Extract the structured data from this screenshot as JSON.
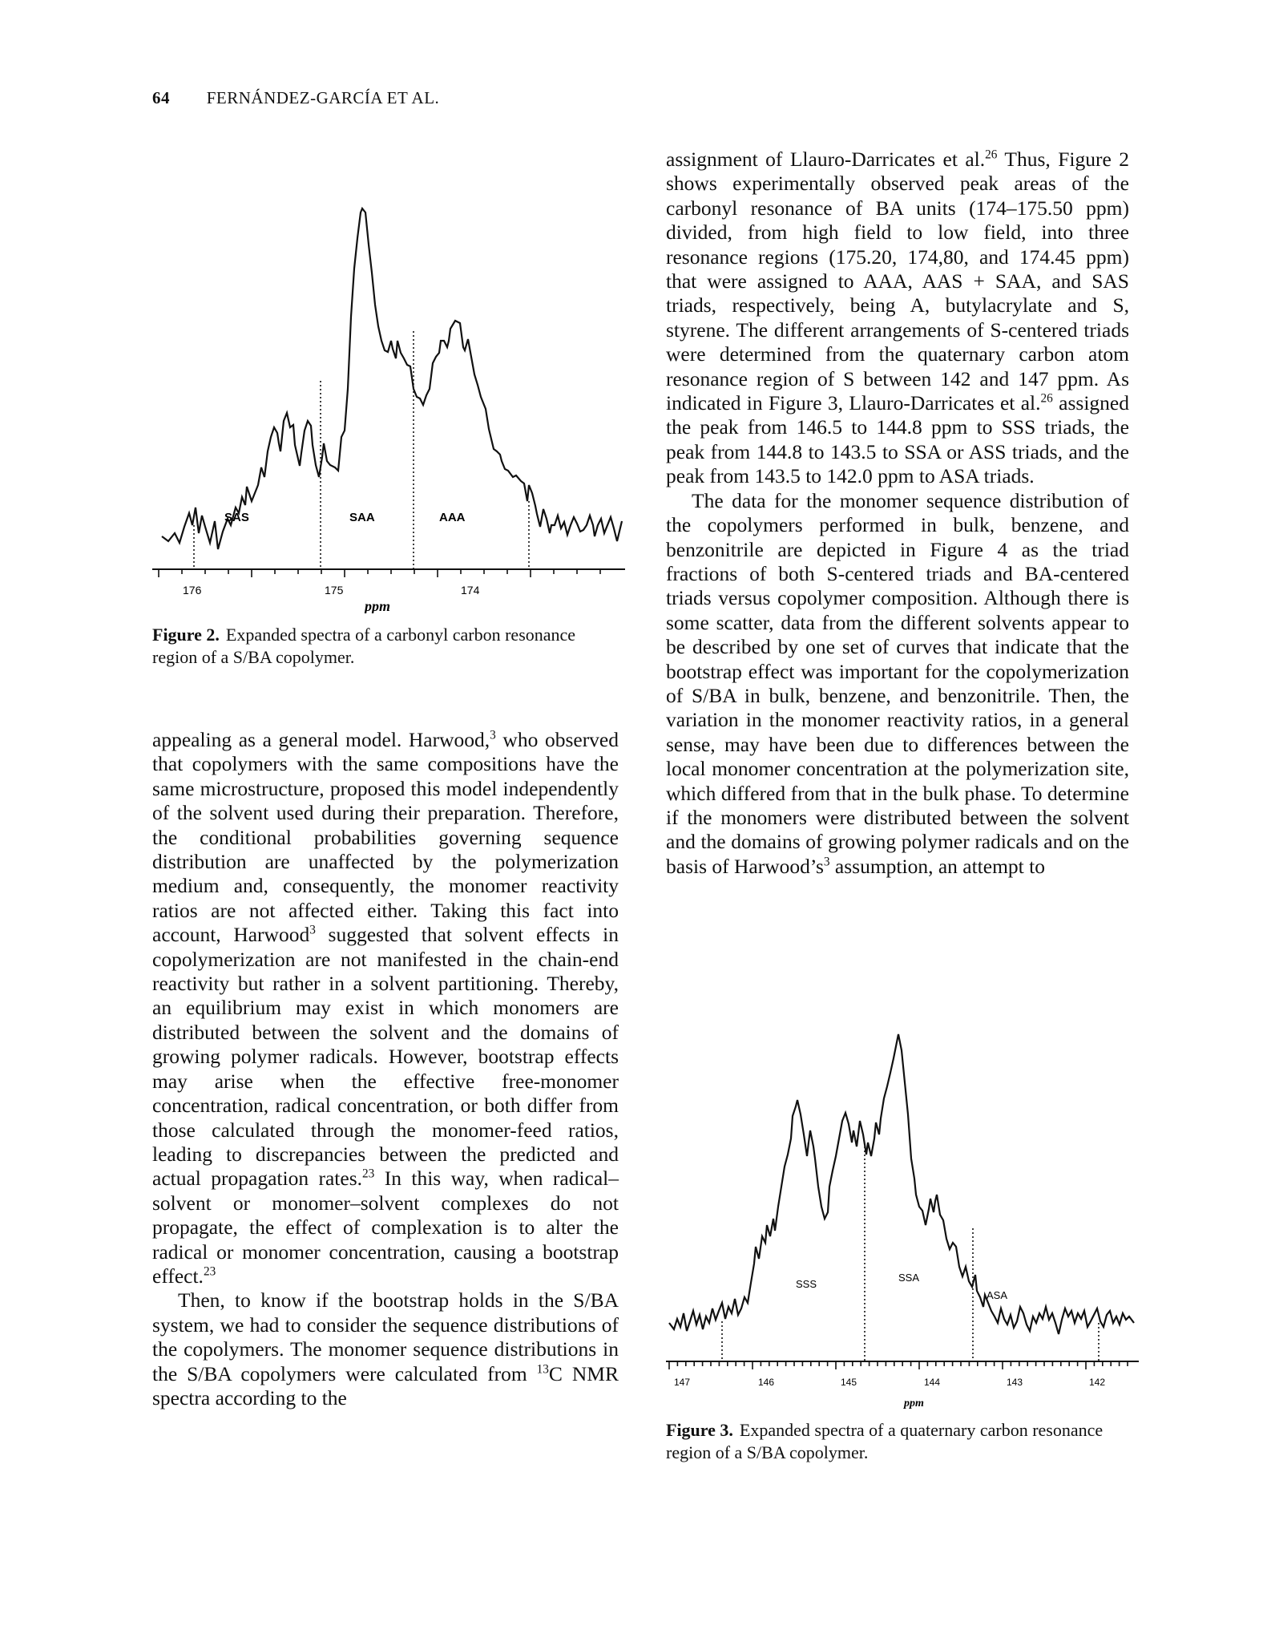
{
  "running_head": {
    "page_number": "64",
    "authors": "FERNÁNDEZ-GARCÍA ET AL."
  },
  "figure2": {
    "caption_label": "Figure 2.",
    "caption_text": "Expanded spectra of a carbonyl carbon resonance region of a S/BA copolymer.",
    "region_labels": [
      "SAS",
      "SAA",
      "AAA"
    ],
    "tick_labels": [
      "176",
      "175",
      "174"
    ],
    "axis_label": "ppm",
    "chart_data": {
      "type": "line",
      "xlabel": "ppm",
      "xlim": [
        176.4,
        173.2
      ],
      "x_ticks": [
        176,
        175,
        174
      ],
      "regions": [
        {
          "label": "SAS",
          "from": 176.0,
          "to": 175.05
        },
        {
          "label": "SAA",
          "from": 175.05,
          "to": 174.35
        },
        {
          "label": "AAA",
          "from": 174.35,
          "to": 173.5
        }
      ],
      "peaks": [
        {
          "ppm": 174.78,
          "relative_intensity": 1.0
        },
        {
          "ppm": 174.3,
          "relative_intensity": 0.62
        },
        {
          "ppm": 175.5,
          "relative_intensity": 0.35
        }
      ]
    }
  },
  "figure3": {
    "caption_label": "Figure 3.",
    "caption_text": "Expanded spectra of a quaternary carbon resonance region of a S/BA copolymer.",
    "region_labels": [
      "SSS",
      "SSA",
      "ASA"
    ],
    "tick_labels": [
      "147",
      "146",
      "145",
      "144",
      "143",
      "142"
    ],
    "axis_label": "ppm",
    "chart_data": {
      "type": "line",
      "xlabel": "ppm",
      "xlim": [
        147.2,
        141.7
      ],
      "x_ticks": [
        147,
        146,
        145,
        144,
        143,
        142
      ],
      "regions": [
        {
          "label": "SSS",
          "from": 146.5,
          "to": 144.8
        },
        {
          "label": "SSA",
          "from": 144.8,
          "to": 143.5
        },
        {
          "label": "ASA",
          "from": 143.5,
          "to": 142.0
        }
      ],
      "peaks": [
        {
          "ppm": 143.8,
          "relative_intensity": 1.0
        },
        {
          "ppm": 145.35,
          "relative_intensity": 0.8
        },
        {
          "ppm": 144.6,
          "relative_intensity": 0.74
        }
      ]
    }
  },
  "left_column": {
    "p1": [
      {
        "t": "appealing as a general model. Harwood,"
      },
      {
        "s": "3"
      },
      {
        "t": " who observed that copolymers with the same compositions have the same microstructure, proposed this model independently of the solvent used during their preparation. Therefore, the conditional probabilities governing sequence distribution are unaffected by the polymerization medium and, consequently, the monomer reactivity ratios are not affected either. Taking this fact into account, Harwood"
      },
      {
        "s": "3"
      },
      {
        "t": " suggested that solvent effects in copolymerization are not manifested in the chain-end reactivity but rather in a solvent partitioning. Thereby, an equilibrium may exist in which monomers are distributed between the solvent and the domains of growing polymer radicals. However, bootstrap effects may arise when the effective free-monomer concentration, radical concentration, or both differ from those calculated through the monomer-feed ratios, leading to discrepancies between the predicted and actual propagation rates."
      },
      {
        "s": "23"
      },
      {
        "t": " In this way, when radical–solvent or monomer–solvent complexes do not propagate, the effect of complexation is to alter the radical or monomer concentration, causing a bootstrap effect."
      },
      {
        "s": "23"
      }
    ],
    "p2": [
      {
        "t": "Then, to know if the bootstrap holds in the S/BA system, we had to consider the sequence distributions of the copolymers. The monomer sequence distributions in the S/BA copolymers were calculated from "
      },
      {
        "s": "13"
      },
      {
        "t": "C NMR spectra according to the"
      }
    ]
  },
  "right_column": {
    "p1": [
      {
        "t": "assignment of Llauro-Darricates et al."
      },
      {
        "s": "26"
      },
      {
        "t": " Thus, Figure 2 shows experimentally observed peak areas of the carbonyl resonance of BA units (174–175.50 ppm) divided, from high field to low field, into three resonance regions (175.20, 174,80, and 174.45 ppm) that were assigned to AAA, AAS + SAA, and SAS triads, respectively, being A, butylacrylate and S, styrene. The different arrangements of S-centered triads were determined from the quaternary carbon atom resonance region of S between 142 and 147 ppm. As indicated in Figure 3, Llauro-Darricates et al."
      },
      {
        "s": "26"
      },
      {
        "t": " assigned the peak from 146.5 to 144.8 ppm to SSS triads, the peak from 144.8 to 143.5 to SSA or ASS triads, and the peak from 143.5 to 142.0 ppm to ASA triads."
      }
    ],
    "p2": [
      {
        "t": "The data for the monomer sequence distribution of the copolymers performed in bulk, benzene, and benzonitrile are depicted in Figure 4 as the triad fractions of both S-centered triads and BA-centered triads versus copolymer composition. Although there is some scatter, data from the different solvents appear to be described by one set of curves that indicate that the bootstrap effect was important for the copolymerization of S/BA in bulk, benzene, and benzonitrile. Then, the variation in the monomer reactivity ratios, in a general sense, may have been due to differences between the local monomer concentration at the polymerization site, which differed from that in the bulk phase. To determine if the monomers were distributed between the solvent and the domains of growing polymer radicals and on the basis of Harwood’s"
      },
      {
        "s": "3"
      },
      {
        "t": " assumption, an attempt to"
      }
    ]
  }
}
